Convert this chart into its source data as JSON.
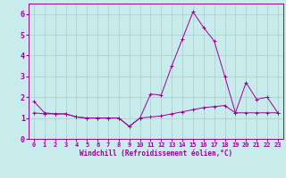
{
  "xlabel": "Windchill (Refroidissement éolien,°C)",
  "background_color": "#c8ecec",
  "line_color": "#990099",
  "grid_color": "#aaccaa",
  "xlim": [
    -0.5,
    23.5
  ],
  "ylim": [
    0,
    6.5
  ],
  "xticks": [
    0,
    1,
    2,
    3,
    4,
    5,
    6,
    7,
    8,
    9,
    10,
    11,
    12,
    13,
    14,
    15,
    16,
    17,
    18,
    19,
    20,
    21,
    22,
    23
  ],
  "yticks": [
    0,
    1,
    2,
    3,
    4,
    5,
    6
  ],
  "curve1_x": [
    0,
    1,
    2,
    3,
    4,
    5,
    6,
    7,
    8,
    9,
    10,
    11,
    12,
    13,
    14,
    15,
    16,
    17,
    18,
    19,
    20,
    21,
    22,
    23
  ],
  "curve1_y": [
    1.8,
    1.25,
    1.2,
    1.2,
    1.05,
    1.0,
    1.0,
    1.0,
    1.0,
    0.6,
    1.0,
    2.15,
    2.1,
    3.5,
    4.8,
    6.1,
    5.35,
    4.7,
    3.0,
    1.25,
    2.7,
    1.9,
    2.0,
    1.25
  ],
  "curve2_x": [
    0,
    1,
    2,
    3,
    4,
    5,
    6,
    7,
    8,
    9,
    10,
    11,
    12,
    13,
    14,
    15,
    16,
    17,
    18,
    19,
    20,
    21,
    22,
    23
  ],
  "curve2_y": [
    1.25,
    1.2,
    1.2,
    1.2,
    1.05,
    1.0,
    1.0,
    1.0,
    1.0,
    0.6,
    1.0,
    1.05,
    1.1,
    1.2,
    1.3,
    1.4,
    1.5,
    1.55,
    1.6,
    1.25,
    1.25,
    1.25,
    1.25,
    1.25
  ]
}
